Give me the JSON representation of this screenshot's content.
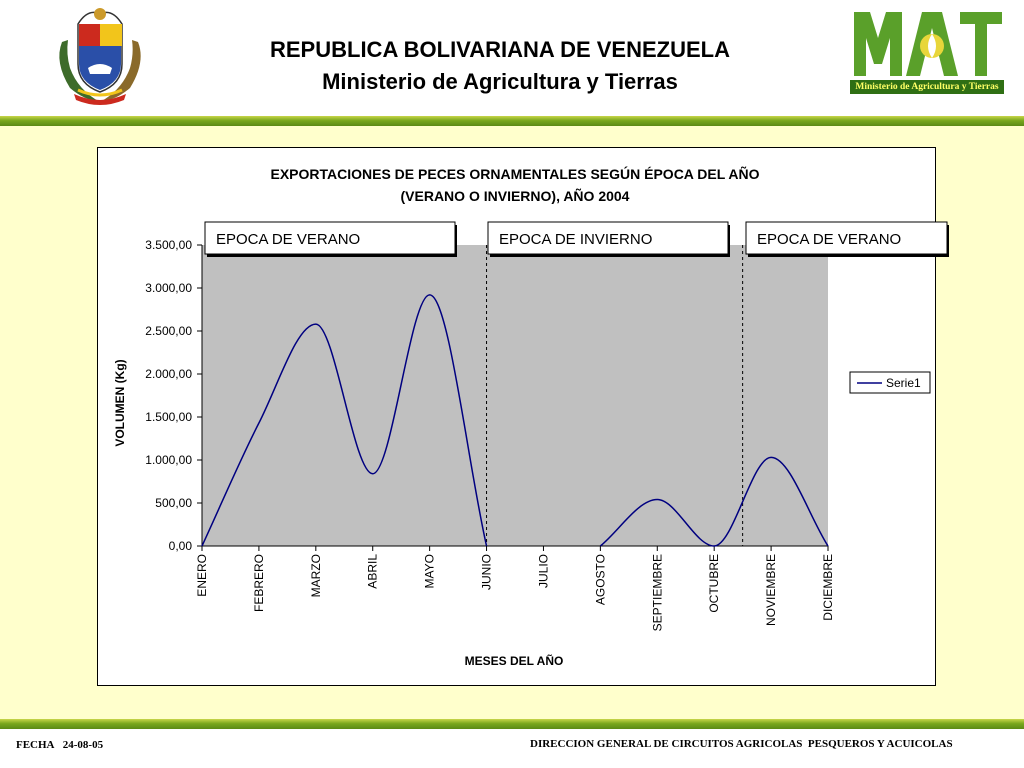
{
  "header": {
    "title_line1": "REPUBLICA BOLIVARIANA DE VENEZUELA",
    "title_line2": "Ministerio de Agricultura y Tierras",
    "logo_text": "MAT",
    "logo_caption": "Ministerio de Agricultura y Tierras"
  },
  "footer": {
    "date_label": "FECHA",
    "date_value": "24-08-05",
    "department": "DIRECCION GENERAL DE CIRCUITOS AGRICOLAS  PESQUEROS Y ACUICOLAS"
  },
  "colors": {
    "series": "#000080",
    "plot_area": "#c0c0c0",
    "accent_green": "#7aa81e"
  },
  "chart_data": {
    "type": "line",
    "title_line1": "EXPORTACIONES DE PECES ORNAMENTALES SEGÚN ÉPOCA DEL AÑO",
    "title_line2": "(VERANO O INVIERNO), AÑO 2004",
    "xlabel": "MESES DEL AÑO",
    "ylabel": "VOLUMEN (Kg)",
    "ylim": [
      0,
      3500
    ],
    "yticks": [
      "0,00",
      "500,00",
      "1.000,00",
      "1.500,00",
      "2.000,00",
      "2.500,00",
      "3.000,00",
      "3.500,00"
    ],
    "categories": [
      "ENERO",
      "FEBRERO",
      "MARZO",
      "ABRIL",
      "MAYO",
      "JUNIO",
      "JULIO",
      "AGOSTO",
      "SEPTIEMBRE",
      "OCTUBRE",
      "NOVIEMBRE",
      "DICIEMBRE"
    ],
    "series": [
      {
        "name": "Serie1",
        "values": [
          0,
          1430,
          2580,
          840,
          2920,
          0,
          null,
          0,
          540,
          0,
          1030,
          0
        ]
      }
    ],
    "legend_position": "right",
    "season_boxes": [
      {
        "label": "EPOCA DE VERANO"
      },
      {
        "label": "EPOCA DE INVIERNO"
      },
      {
        "label": "EPOCA DE VERANO"
      }
    ],
    "season_dividers_after_month": [
      "JUNIO",
      "OCTUBRE"
    ],
    "grid": false
  }
}
